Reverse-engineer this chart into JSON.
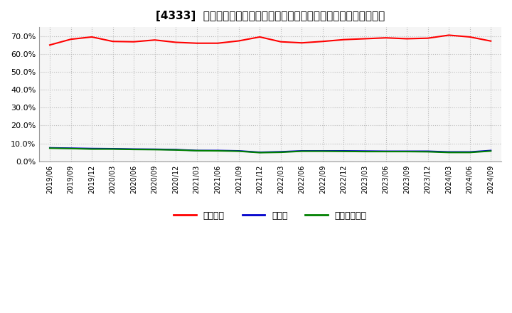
{
  "title": "[4333]  自己資本、のれん、繰延税金資産の総資産に対する比率の推移",
  "x_labels": [
    "2019/06",
    "2019/09",
    "2019/12",
    "2020/03",
    "2020/06",
    "2020/09",
    "2020/12",
    "2021/03",
    "2021/06",
    "2021/09",
    "2021/12",
    "2022/03",
    "2022/06",
    "2022/09",
    "2022/12",
    "2023/03",
    "2023/06",
    "2023/09",
    "2023/12",
    "2024/03",
    "2024/06",
    "2024/09"
  ],
  "equity": [
    0.65,
    0.682,
    0.695,
    0.67,
    0.668,
    0.678,
    0.665,
    0.66,
    0.66,
    0.673,
    0.695,
    0.668,
    0.662,
    0.67,
    0.68,
    0.685,
    0.69,
    0.685,
    0.688,
    0.705,
    0.695,
    0.672
  ],
  "goodwill": [
    0.075,
    0.073,
    0.071,
    0.07,
    0.068,
    0.067,
    0.065,
    0.06,
    0.06,
    0.058,
    0.05,
    0.053,
    0.058,
    0.058,
    0.058,
    0.057,
    0.056,
    0.056,
    0.056,
    0.052,
    0.052,
    0.06
  ],
  "deferred_tax": [
    0.073,
    0.071,
    0.068,
    0.068,
    0.066,
    0.065,
    0.063,
    0.059,
    0.058,
    0.056,
    0.048,
    0.05,
    0.056,
    0.056,
    0.055,
    0.054,
    0.054,
    0.054,
    0.053,
    0.049,
    0.049,
    0.057
  ],
  "equity_color": "#ff0000",
  "goodwill_color": "#0000cc",
  "deferred_tax_color": "#008000",
  "legend_labels": [
    "自己資本",
    "のれん",
    "繰延税金資産"
  ],
  "ylim": [
    0.0,
    0.75
  ],
  "yticks": [
    0.0,
    0.1,
    0.2,
    0.3,
    0.4,
    0.5,
    0.6,
    0.7
  ],
  "bg_color": "#ffffff",
  "plot_bg_color": "#f5f5f5",
  "grid_color": "#bbbbbb",
  "title_fontsize": 11
}
